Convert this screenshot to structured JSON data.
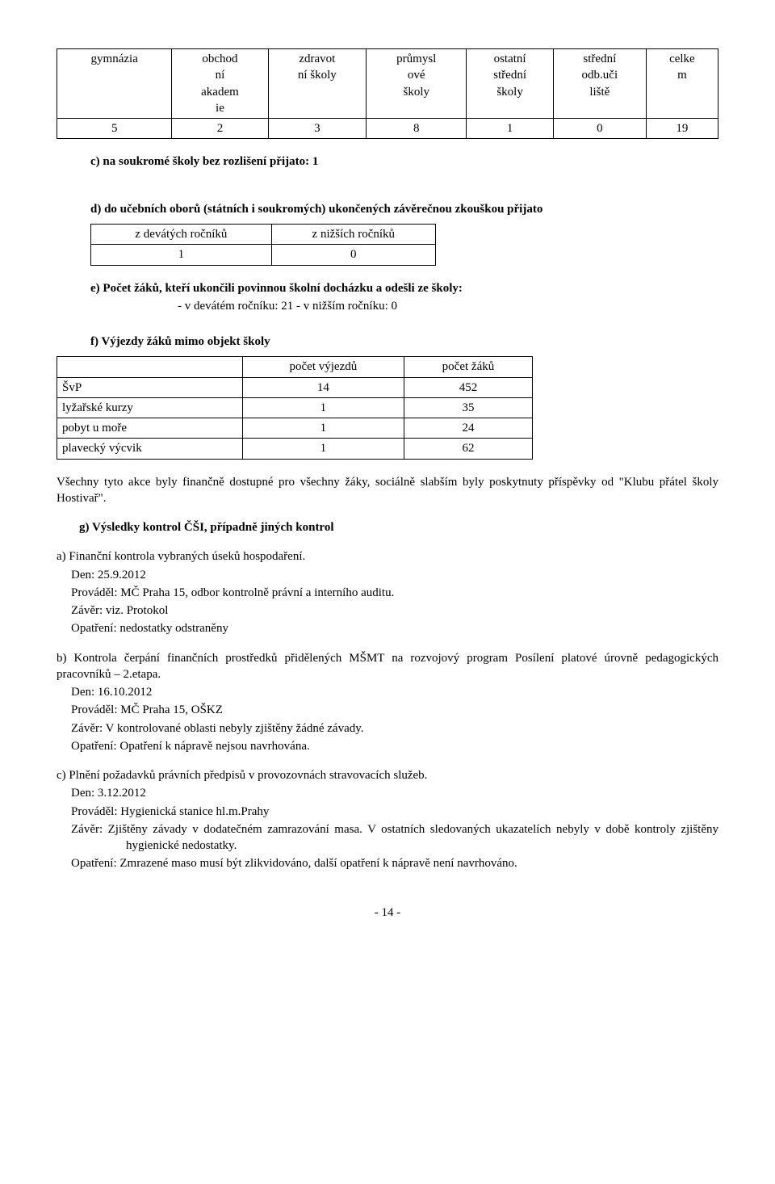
{
  "t1": {
    "headers": [
      "gymnázia",
      "obchod\nní\nakadem\nie",
      "zdravot\nní školy",
      "průmysl\nové\nškoly",
      "ostatní\nstřední\nškoly",
      "střední\nodb.uči\nliště",
      "celke\nm"
    ],
    "values": [
      "5",
      "2",
      "3",
      "8",
      "1",
      "0",
      "19"
    ]
  },
  "c_label": "c)  na soukromé školy bez rozlišení přijato: 1",
  "d_label": "d)  do učebních oborů (státních i soukromých) ukončených závěrečnou zkouškou přijato",
  "t2": {
    "h1": "z devátých ročníků",
    "h2": "z nižších ročníků",
    "v1": "1",
    "v2": "0"
  },
  "e_label": "e)  Počet žáků, kteří ukončili povinnou školní docházku a odešli ze školy:",
  "e_sub": "- v devátém ročníku:   21        - v nižším ročníku:      0",
  "f_label": "f)   Výjezdy žáků mimo objekt školy",
  "t3": {
    "h1": "počet výjezdů",
    "h2": "počet žáků",
    "rows": [
      {
        "label": "ŠvP",
        "c1": "14",
        "c2": "452"
      },
      {
        "label": "lyžařské kurzy",
        "c1": "1",
        "c2": "35"
      },
      {
        "label": "pobyt u moře",
        "c1": "1",
        "c2": "24"
      },
      {
        "label": "plavecký výcvik",
        "c1": "1",
        "c2": "62"
      }
    ]
  },
  "para1": "Všechny tyto akce byly finančně dostupné pro všechny žáky, sociálně slabším byly poskytnuty příspěvky od \"Klubu přátel školy Hostivař\".",
  "g_label": "g)  Výsledky kontrol ČŠI, případně jiných kontrol",
  "grpA": {
    "l1": "a) Finanční kontrola vybraných úseků hospodaření.",
    "l2": "Den:         25.9.2012",
    "l3": "Prováděl: MČ Praha 15, odbor kontrolně právní a interního auditu.",
    "l4": "Závěr:      viz. Protokol",
    "l5": "Opatření: nedostatky odstraněny"
  },
  "grpB": {
    "l1": "b) Kontrola čerpání finančních prostředků přidělených MŠMT na rozvojový program Posílení platové úrovně pedagogických pracovníků – 2.etapa.",
    "l2": "Den:         16.10.2012",
    "l3": "Prováděl: MČ Praha 15, OŠKZ",
    "l4": "Závěr:      V kontrolované oblasti nebyly zjištěny žádné závady.",
    "l5": "Opatření: Opatření k nápravě nejsou navrhována."
  },
  "grpC": {
    "l1": "c) Plnění požadavků právních předpisů v provozovnách stravovacích služeb.",
    "l2": "Den:         3.12.2012",
    "l3": "Prováděl: Hygienická stanice hl.m.Prahy",
    "l4": "Závěr:    Zjištěny závady v dodatečném zamrazování masa. V ostatních sledovaných ukazatelích nebyly v době kontroly zjištěny hygienické nedostatky.",
    "l5": "Opatření: Zmrazené maso musí být zlikvidováno, další opatření k nápravě není navrhováno."
  },
  "page_num": "- 14 -"
}
